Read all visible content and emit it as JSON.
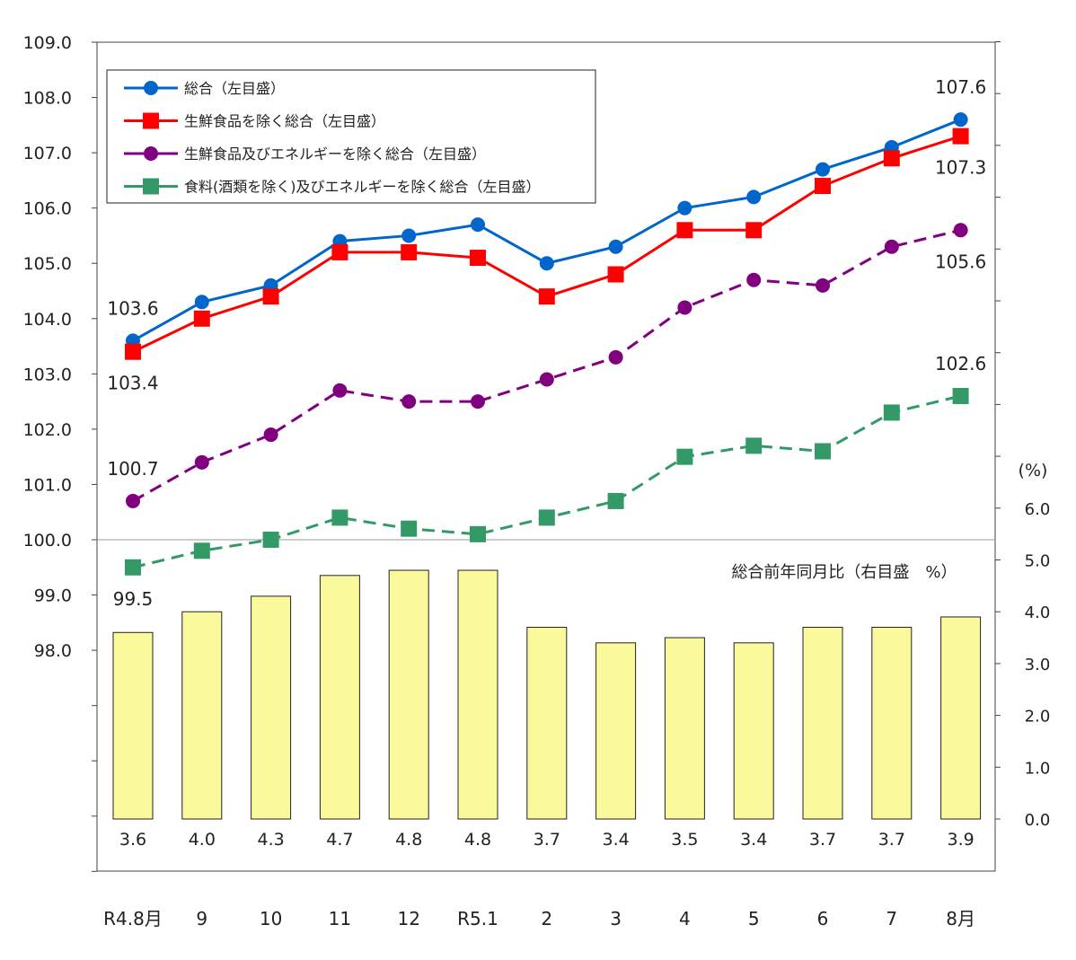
{
  "chart_data": {
    "type": "line",
    "categories": [
      "R4.8月",
      "9",
      "10",
      "11",
      "12",
      "R5.1",
      "2",
      "3",
      "4",
      "5",
      "6",
      "7",
      "8月"
    ],
    "left_axis": {
      "ylim": [
        94,
        109
      ],
      "ticks": [
        "109.0",
        "108.0",
        "107.0",
        "106.0",
        "105.0",
        "104.0",
        "103.0",
        "102.0",
        "101.0",
        "100.0",
        "99.0",
        "98.0"
      ],
      "reference_line": 100.0
    },
    "right_axis": {
      "ylim": [
        0,
        15
      ],
      "unit_label": "(%)",
      "ticks": [
        "6.0",
        "5.0",
        "4.0",
        "3.0",
        "2.0",
        "1.0",
        "0.0"
      ]
    },
    "series": [
      {
        "name": "総合（左目盛）",
        "type": "line",
        "axis": "left",
        "color": "#0066cc",
        "marker": "circle",
        "dashed": false,
        "values": [
          103.6,
          104.3,
          104.6,
          105.4,
          105.5,
          105.7,
          105.0,
          105.3,
          106.0,
          106.2,
          106.7,
          107.1,
          107.6
        ]
      },
      {
        "name": "生鮮食品を除く総合（左目盛）",
        "type": "line",
        "axis": "left",
        "color": "#ff0000",
        "marker": "square",
        "dashed": false,
        "values": [
          103.4,
          104.0,
          104.4,
          105.2,
          105.2,
          105.1,
          104.4,
          104.8,
          105.6,
          105.6,
          106.4,
          106.9,
          107.3
        ]
      },
      {
        "name": "生鮮食品及びエネルギーを除く総合（左目盛）",
        "type": "line",
        "axis": "left",
        "color": "#800080",
        "marker": "circle",
        "dashed": true,
        "values": [
          100.7,
          101.4,
          101.9,
          102.7,
          102.5,
          102.5,
          102.9,
          103.3,
          104.2,
          104.7,
          104.6,
          105.3,
          105.6
        ]
      },
      {
        "name": "食料(酒類を除く)及びエネルギーを除く総合（左目盛）",
        "type": "line",
        "axis": "left",
        "color": "#339966",
        "marker": "square",
        "dashed": true,
        "values": [
          99.5,
          99.8,
          100.0,
          100.4,
          100.2,
          100.1,
          100.4,
          100.7,
          101.5,
          101.7,
          101.6,
          102.3,
          102.6
        ]
      },
      {
        "name": "総合前年同月比（右目盛　%）",
        "type": "bar",
        "axis": "right",
        "color": "#fafa9c",
        "values": [
          3.6,
          4.0,
          4.3,
          4.7,
          4.8,
          4.8,
          3.7,
          3.4,
          3.5,
          3.4,
          3.7,
          3.7,
          3.9
        ],
        "labels": [
          "3.6",
          "4.0",
          "4.3",
          "4.7",
          "4.8",
          "4.8",
          "3.7",
          "3.4",
          "3.5",
          "3.4",
          "3.7",
          "3.7",
          "3.9"
        ]
      }
    ],
    "annotations": [
      {
        "text": "107.6",
        "series": 0,
        "index": 12,
        "pos": "above"
      },
      {
        "text": "107.3",
        "series": 1,
        "index": 12,
        "pos": "below"
      },
      {
        "text": "105.6",
        "series": 2,
        "index": 12,
        "pos": "below"
      },
      {
        "text": "102.6",
        "series": 3,
        "index": 12,
        "pos": "above"
      },
      {
        "text": "103.6",
        "series": 0,
        "index": 0,
        "pos": "above"
      },
      {
        "text": "103.4",
        "series": 1,
        "index": 0,
        "pos": "below"
      },
      {
        "text": "100.7",
        "series": 2,
        "index": 0,
        "pos": "above"
      },
      {
        "text": "99.5",
        "series": 3,
        "index": 0,
        "pos": "below"
      }
    ],
    "legend": "top-left",
    "grid": false
  }
}
